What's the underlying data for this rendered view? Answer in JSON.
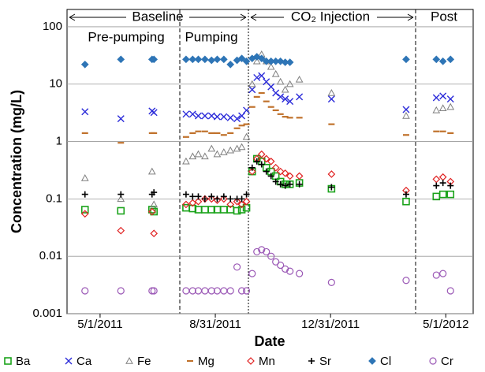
{
  "chart_data": {
    "type": "scatter",
    "yscale": "log",
    "ylabel": "Concentration (mg/L)",
    "xlabel": "Date",
    "annotations": {
      "baseline": "Baseline",
      "injection": "CO₂ Injection",
      "post": "Post",
      "prepumping": "Pre-pumping",
      "pumping": "Pumping"
    },
    "xlim": [
      "2011-03-27",
      "2012-05-30"
    ],
    "xticks": [
      {
        "value": "2011-05-01",
        "label": "5/1/2011"
      },
      {
        "value": "2011-08-31",
        "label": "8/31/2011"
      },
      {
        "value": "2011-12-31",
        "label": "12/31/2011"
      },
      {
        "value": "2012-05-01",
        "label": "5/1/2012"
      }
    ],
    "ylim": [
      0.001,
      200
    ],
    "yticks": [
      0.001,
      0.01,
      0.1,
      1,
      10,
      100
    ],
    "grid": true,
    "legend": "bottom",
    "series": [
      {
        "name": "Ba",
        "color": "#1aa31a",
        "marker": "square-open",
        "x": [
          "2011-04-15",
          "2011-05-23",
          "2011-06-25",
          "2011-06-27",
          "2011-07-31",
          "2011-08-07",
          "2011-08-13",
          "2011-08-20",
          "2011-08-27",
          "2011-09-02",
          "2011-09-09",
          "2011-09-16",
          "2011-09-23",
          "2011-09-28",
          "2011-10-03",
          "2011-10-09",
          "2011-10-14",
          "2011-10-19",
          "2011-10-24",
          "2011-10-29",
          "2011-11-03",
          "2011-11-08",
          "2011-11-13",
          "2011-11-18",
          "2011-11-28",
          "2012-01-01",
          "2012-03-20",
          "2012-04-21",
          "2012-04-28",
          "2012-05-06"
        ],
        "values": [
          0.065,
          0.062,
          0.065,
          0.06,
          0.07,
          0.068,
          0.065,
          0.065,
          0.065,
          0.065,
          0.065,
          0.065,
          0.062,
          0.065,
          0.07,
          0.3,
          0.5,
          0.45,
          0.35,
          0.3,
          0.25,
          0.2,
          0.18,
          0.18,
          0.19,
          0.15,
          0.09,
          0.11,
          0.12,
          0.12
        ]
      },
      {
        "name": "Ca",
        "color": "#2b2bd9",
        "marker": "x",
        "x": [
          "2011-04-15",
          "2011-05-23",
          "2011-06-25",
          "2011-06-27",
          "2011-07-31",
          "2011-08-07",
          "2011-08-13",
          "2011-08-20",
          "2011-08-27",
          "2011-09-02",
          "2011-09-09",
          "2011-09-16",
          "2011-09-23",
          "2011-09-28",
          "2011-10-03",
          "2011-10-09",
          "2011-10-14",
          "2011-10-19",
          "2011-10-24",
          "2011-10-29",
          "2011-11-03",
          "2011-11-08",
          "2011-11-13",
          "2011-11-18",
          "2011-11-28",
          "2012-01-01",
          "2012-03-20",
          "2012-04-21",
          "2012-04-28",
          "2012-05-06"
        ],
        "values": [
          3.3,
          2.5,
          3.4,
          3.2,
          3.0,
          3.0,
          2.8,
          2.8,
          2.8,
          2.7,
          2.7,
          2.6,
          2.5,
          2.8,
          3.5,
          8,
          13,
          14,
          11,
          9,
          7,
          6,
          5.5,
          5,
          6,
          5.5,
          3.6,
          5.8,
          6.2,
          5.5
        ]
      },
      {
        "name": "Fe",
        "color": "#7f7f7f",
        "marker": "triangle-open",
        "x": [
          "2011-04-15",
          "2011-05-23",
          "2011-06-25",
          "2011-06-27",
          "2011-07-31",
          "2011-08-07",
          "2011-08-13",
          "2011-08-20",
          "2011-08-27",
          "2011-09-02",
          "2011-09-09",
          "2011-09-16",
          "2011-09-23",
          "2011-09-28",
          "2011-10-03",
          "2011-10-09",
          "2011-10-14",
          "2011-10-19",
          "2011-10-24",
          "2011-10-29",
          "2011-11-03",
          "2011-11-08",
          "2011-11-13",
          "2011-11-18",
          "2011-11-28",
          "2012-01-01",
          "2012-03-20",
          "2012-04-21",
          "2012-04-28",
          "2012-05-06"
        ],
        "values": [
          0.23,
          0.1,
          0.3,
          0.08,
          0.45,
          0.55,
          0.6,
          0.55,
          0.75,
          0.6,
          0.65,
          0.7,
          0.75,
          0.8,
          1.2,
          10,
          25,
          33,
          25,
          20,
          15,
          11,
          8,
          10,
          12,
          7,
          2.8,
          3.5,
          3.8,
          4
        ]
      },
      {
        "name": "Mg",
        "color": "#c0722c",
        "marker": "dash",
        "x": [
          "2011-04-15",
          "2011-05-23",
          "2011-06-25",
          "2011-06-27",
          "2011-07-31",
          "2011-08-07",
          "2011-08-13",
          "2011-08-20",
          "2011-08-27",
          "2011-09-02",
          "2011-09-09",
          "2011-09-16",
          "2011-09-23",
          "2011-09-28",
          "2011-10-03",
          "2011-10-09",
          "2011-10-14",
          "2011-10-19",
          "2011-10-24",
          "2011-10-29",
          "2011-11-03",
          "2011-11-08",
          "2011-11-13",
          "2011-11-18",
          "2011-11-28",
          "2012-01-01",
          "2012-03-20",
          "2012-04-21",
          "2012-04-28",
          "2012-05-06"
        ],
        "values": [
          1.4,
          0.95,
          1.4,
          1.4,
          1.2,
          1.4,
          1.5,
          1.5,
          1.4,
          1.4,
          1.3,
          1.4,
          1.7,
          1.9,
          2,
          4,
          6,
          7,
          5,
          4,
          3.5,
          3,
          2.7,
          2.6,
          2.6,
          2,
          1.3,
          1.5,
          1.5,
          1.4
        ]
      },
      {
        "name": "Mn",
        "color": "#e02020",
        "marker": "diamond-open",
        "x": [
          "2011-04-15",
          "2011-05-23",
          "2011-06-25",
          "2011-06-27",
          "2011-07-31",
          "2011-08-07",
          "2011-08-13",
          "2011-08-20",
          "2011-08-27",
          "2011-09-02",
          "2011-09-09",
          "2011-09-16",
          "2011-09-23",
          "2011-09-28",
          "2011-10-03",
          "2011-10-09",
          "2011-10-14",
          "2011-10-19",
          "2011-10-24",
          "2011-10-29",
          "2011-11-03",
          "2011-11-08",
          "2011-11-13",
          "2011-11-18",
          "2011-11-28",
          "2012-01-01",
          "2012-03-20",
          "2012-04-21",
          "2012-04-28",
          "2012-05-06"
        ],
        "values": [
          0.055,
          0.028,
          0.06,
          0.025,
          0.08,
          0.085,
          0.09,
          0.1,
          0.1,
          0.095,
          0.1,
          0.08,
          0.09,
          0.08,
          0.09,
          0.3,
          0.5,
          0.6,
          0.5,
          0.45,
          0.35,
          0.3,
          0.28,
          0.25,
          0.25,
          0.27,
          0.14,
          0.22,
          0.24,
          0.2
        ]
      },
      {
        "name": "Sr",
        "color": "#000000",
        "marker": "plus",
        "x": [
          "2011-04-15",
          "2011-05-23",
          "2011-06-25",
          "2011-06-27",
          "2011-07-31",
          "2011-08-07",
          "2011-08-13",
          "2011-08-20",
          "2011-08-27",
          "2011-09-02",
          "2011-09-09",
          "2011-09-16",
          "2011-09-23",
          "2011-09-28",
          "2011-10-03",
          "2011-10-09",
          "2011-10-14",
          "2011-10-19",
          "2011-10-24",
          "2011-10-29",
          "2011-11-03",
          "2011-11-08",
          "2011-11-13",
          "2011-11-18",
          "2011-11-28",
          "2012-01-01",
          "2012-03-20",
          "2012-04-21",
          "2012-04-28",
          "2012-05-06"
        ],
        "values": [
          0.12,
          0.12,
          0.12,
          0.13,
          0.12,
          0.11,
          0.11,
          0.1,
          0.11,
          0.1,
          0.11,
          0.1,
          0.1,
          0.1,
          0.12,
          0.35,
          0.45,
          0.4,
          0.3,
          0.25,
          0.2,
          0.18,
          0.17,
          0.18,
          0.18,
          0.16,
          0.12,
          0.17,
          0.19,
          0.17
        ]
      },
      {
        "name": "Cl",
        "color": "#2e75b6",
        "marker": "diamond",
        "x": [
          "2011-04-15",
          "2011-05-23",
          "2011-06-25",
          "2011-06-27",
          "2011-07-31",
          "2011-08-07",
          "2011-08-13",
          "2011-08-20",
          "2011-08-27",
          "2011-09-02",
          "2011-09-09",
          "2011-09-16",
          "2011-09-23",
          "2011-09-28",
          "2011-10-03",
          "2011-10-09",
          "2011-10-14",
          "2011-10-19",
          "2011-10-24",
          "2011-10-29",
          "2011-11-03",
          "2011-11-08",
          "2011-11-13",
          "2011-11-18",
          "2011-11-28",
          "2012-01-01",
          "2012-03-20",
          "2012-04-21",
          "2012-04-28",
          "2012-05-06"
        ],
        "values": [
          22,
          27,
          27,
          27,
          27,
          27,
          27,
          27,
          26,
          27,
          27,
          22,
          26,
          28,
          25,
          28,
          30,
          28,
          25,
          25,
          25,
          25,
          24,
          24,
          null,
          null,
          27,
          27,
          25,
          27
        ]
      },
      {
        "name": "Cr",
        "color": "#9b59b6",
        "marker": "circle-open",
        "x": [
          "2011-04-15",
          "2011-05-23",
          "2011-06-25",
          "2011-06-27",
          "2011-07-31",
          "2011-08-07",
          "2011-08-13",
          "2011-08-20",
          "2011-08-27",
          "2011-09-02",
          "2011-09-09",
          "2011-09-16",
          "2011-09-23",
          "2011-09-28",
          "2011-10-03",
          "2011-10-09",
          "2011-10-14",
          "2011-10-19",
          "2011-10-24",
          "2011-10-29",
          "2011-11-03",
          "2011-11-08",
          "2011-11-13",
          "2011-11-18",
          "2011-11-28",
          "2012-01-01",
          "2012-03-20",
          "2012-04-21",
          "2012-04-28",
          "2012-05-06"
        ],
        "values": [
          0.0025,
          0.0025,
          0.0025,
          0.0025,
          0.0025,
          0.0025,
          0.0025,
          0.0025,
          0.0025,
          0.0025,
          0.0025,
          0.0025,
          0.0065,
          0.0025,
          0.0025,
          0.005,
          0.012,
          0.013,
          0.012,
          0.01,
          0.008,
          0.007,
          0.006,
          0.0055,
          0.005,
          0.0035,
          0.0038,
          0.0047,
          0.005,
          0.0025
        ]
      }
    ]
  }
}
